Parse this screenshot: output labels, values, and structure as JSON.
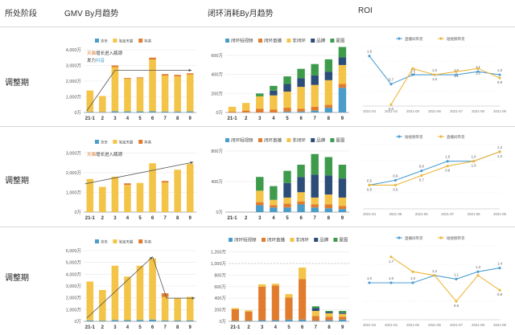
{
  "headers": {
    "stage": "所处阶段",
    "gmv": "GMV By月趋势",
    "closed": "闭环消耗By月趋势",
    "roi": "ROI"
  },
  "colors": {
    "jd": "#4a9cc9",
    "tmall": "#f3c447",
    "douyin": "#e17b2e",
    "brand": "#2c4d78",
    "planet": "#3f9b4c",
    "blue": "#4d9fd3",
    "yellow": "#edb73d",
    "arrow": "#555555"
  },
  "chart_data": [
    {
      "id": "r1-gmv",
      "type": "bar",
      "stacked": true,
      "stage": "调整期",
      "legend": [
        "京东",
        "淘宝天猫",
        "抖音"
      ],
      "annotation": {
        "pre": "天猫",
        "mid": "增长进入瓶颈",
        "line2pre": "发力",
        "line2hl": "抖音"
      },
      "categories": [
        "21-1",
        "2",
        "3",
        "4",
        "5",
        "6",
        "7",
        "8",
        "9"
      ],
      "yticks": [
        "0万",
        "1,000万",
        "2,000万",
        "3,000万",
        "4,000万"
      ],
      "ymax": 4000,
      "series": [
        {
          "name": "京东",
          "color": "#4a9cc9",
          "values": [
            40,
            30,
            80,
            70,
            70,
            80,
            60,
            60,
            70
          ]
        },
        {
          "name": "淘宝天猫",
          "color": "#f3c447",
          "values": [
            1360,
            1020,
            2820,
            2080,
            2120,
            3300,
            2300,
            2250,
            2350
          ]
        },
        {
          "name": "抖音",
          "color": "#e17b2e",
          "values": [
            0,
            0,
            100,
            50,
            50,
            120,
            90,
            90,
            80
          ]
        }
      ]
    },
    {
      "id": "r1-closed",
      "type": "bar",
      "stacked": true,
      "legend": [
        "闭环短视频",
        "闭环直播",
        "非闭环",
        "品牌",
        "星图"
      ],
      "categories": [
        "21-1",
        "2",
        "3",
        "4",
        "5",
        "6",
        "7",
        "8",
        "9"
      ],
      "yticks": [
        "0万",
        "200万",
        "400万",
        "600万"
      ],
      "ymax": 660,
      "series": [
        {
          "name": "闭环短视频",
          "color": "#4a9cc9",
          "values": [
            0,
            0,
            0,
            0,
            10,
            10,
            20,
            50,
            260
          ]
        },
        {
          "name": "闭环直播",
          "color": "#e17b2e",
          "values": [
            10,
            20,
            40,
            30,
            40,
            30,
            40,
            30,
            40
          ]
        },
        {
          "name": "非闭环",
          "color": "#f3c447",
          "values": [
            50,
            80,
            130,
            150,
            170,
            230,
            230,
            260,
            200
          ]
        },
        {
          "name": "品牌",
          "color": "#2c4d78",
          "values": [
            0,
            0,
            0,
            50,
            80,
            90,
            100,
            90,
            80
          ]
        },
        {
          "name": "星图",
          "color": "#3f9b4c",
          "values": [
            0,
            0,
            30,
            50,
            80,
            100,
            120,
            130,
            110
          ]
        }
      ]
    },
    {
      "id": "r1-roi",
      "type": "line",
      "legend": [
        "直播间带货",
        "短视频带货"
      ],
      "categories": [
        "2021-03",
        "2021-04",
        "2021-05",
        "2021-06",
        "2021-07",
        "2021-08",
        "2021-09"
      ],
      "ymax": 1.9,
      "series": [
        {
          "name": "直播间带货",
          "color": "#4d9fd3",
          "values": [
            1.6,
            0.7,
            1.0,
            1.0,
            1.0,
            1.1,
            1.0
          ],
          "labels": [
            "1.6",
            "0.7",
            "1.0",
            "1.0",
            "1.0",
            "1.1",
            "1.0"
          ]
        },
        {
          "name": "短视频带货",
          "color": "#edb73d",
          "values": [
            null,
            0.05,
            1.2,
            1.0,
            1.1,
            1.2,
            0.9
          ],
          "labels": [
            "",
            "0.0",
            "1.2",
            "1.0",
            "1.1",
            "1.2",
            "0.9"
          ]
        }
      ]
    },
    {
      "id": "r2-gmv",
      "type": "bar",
      "stacked": true,
      "stage": "调整期",
      "legend": [
        "京东",
        "淘宝天猫",
        "抖音"
      ],
      "annotation": {
        "pre": "天猫",
        "mid": "增长进入瓶颈",
        "line2pre": "",
        "line2hl": ""
      },
      "categories": [
        "21-1",
        "2",
        "3",
        "4",
        "5",
        "6",
        "7",
        "8",
        "9"
      ],
      "yticks": [
        "0万",
        "1,000万",
        "2,000万",
        "3,000万"
      ],
      "ymax": 3100,
      "series": [
        {
          "name": "京东",
          "color": "#4a9cc9",
          "values": [
            0,
            0,
            0,
            0,
            0,
            0,
            0,
            0,
            0
          ]
        },
        {
          "name": "淘宝天猫",
          "color": "#f3c447",
          "values": [
            1680,
            1280,
            1800,
            1380,
            1480,
            2480,
            1500,
            2150,
            2450
          ]
        },
        {
          "name": "抖音",
          "color": "#e17b2e",
          "values": [
            0,
            0,
            0,
            80,
            0,
            0,
            80,
            0,
            0
          ]
        }
      ]
    },
    {
      "id": "r2-closed",
      "type": "bar",
      "stacked": true,
      "legend": [
        "闭环短视频",
        "闭环直播",
        "非闭环",
        "品牌",
        "星图"
      ],
      "categories": [
        "21-1",
        "2",
        "3",
        "4",
        "5",
        "6",
        "7",
        "8",
        "9"
      ],
      "yticks": [
        "0万",
        "400万",
        "800万"
      ],
      "ymax": 820,
      "series": [
        {
          "name": "闭环短视频",
          "color": "#4a9cc9",
          "values": [
            0,
            0,
            90,
            60,
            60,
            100,
            60,
            50,
            40
          ]
        },
        {
          "name": "闭环直播",
          "color": "#e17b2e",
          "values": [
            0,
            0,
            40,
            30,
            50,
            40,
            40,
            50,
            40
          ]
        },
        {
          "name": "非闭环",
          "color": "#f3c447",
          "values": [
            0,
            0,
            150,
            70,
            80,
            120,
            90,
            130,
            110
          ]
        },
        {
          "name": "品牌",
          "color": "#2c4d78",
          "values": [
            0,
            0,
            0,
            0,
            190,
            200,
            300,
            250,
            250
          ]
        },
        {
          "name": "星图",
          "color": "#3f9b4c",
          "values": [
            0,
            0,
            180,
            180,
            160,
            160,
            270,
            240,
            180
          ]
        }
      ]
    },
    {
      "id": "r2-roi",
      "type": "line",
      "legend": [
        "短视频带货",
        "直播间带货"
      ],
      "categories": [
        "2021-04",
        "2021-05",
        "2021-06",
        "2021-07",
        "2021-08",
        "2021-09"
      ],
      "ymax": 1.35,
      "series": [
        {
          "name": "短视频带货",
          "color": "#4d9fd3",
          "values": [
            0.5,
            0.6,
            0.8,
            1.0,
            1.0,
            1.2
          ],
          "labels": [
            "0.5",
            "0.6",
            "0.8",
            "1.0",
            "1.0",
            "1.2"
          ]
        },
        {
          "name": "直播间带货",
          "color": "#edb73d",
          "values": [
            0.5,
            0.5,
            0.7,
            0.9,
            1.0,
            1.2
          ],
          "labels": [
            "0.5",
            "0.5",
            "0.7",
            "0.9",
            "1.0",
            "1.2"
          ]
        }
      ]
    },
    {
      "id": "r3-gmv",
      "type": "bar",
      "stacked": true,
      "stage": "调整期",
      "legend": [
        "京东",
        "淘宝天猫",
        "抖音"
      ],
      "categories": [
        "21-1",
        "2",
        "3",
        "4",
        "5",
        "6",
        "7",
        "8",
        "9"
      ],
      "yticks": [
        "0万",
        "1,000万",
        "2,000万",
        "3,000万",
        "4,000万",
        "5,000万",
        "6,000万"
      ],
      "ymax": 6000,
      "series": [
        {
          "name": "京东",
          "color": "#4a9cc9",
          "values": [
            80,
            60,
            120,
            100,
            120,
            150,
            80,
            80,
            80
          ]
        },
        {
          "name": "淘宝天猫",
          "color": "#f3c447",
          "values": [
            3300,
            2600,
            4600,
            3700,
            4600,
            5200,
            2000,
            1900,
            2000
          ]
        },
        {
          "name": "抖音",
          "color": "#e17b2e",
          "values": [
            0,
            0,
            0,
            0,
            0,
            0,
            300,
            0,
            0
          ]
        }
      ]
    },
    {
      "id": "r3-closed",
      "type": "bar",
      "stacked": true,
      "legend": [
        "闭环短视频",
        "闭环直播",
        "非闭环",
        "品牌",
        "星图"
      ],
      "categories": [
        "21-1",
        "2",
        "3",
        "4",
        "5",
        "6",
        "7",
        "8",
        "9"
      ],
      "yticks": [
        "0万",
        "200万",
        "400万",
        "600万",
        "800万",
        "1,000万",
        "1,200万"
      ],
      "ymax": 1250,
      "series": [
        {
          "name": "闭环短视频",
          "color": "#4a9cc9",
          "values": [
            10,
            10,
            20,
            20,
            30,
            30,
            10,
            20,
            30
          ]
        },
        {
          "name": "闭环直播",
          "color": "#e17b2e",
          "values": [
            200,
            160,
            580,
            600,
            380,
            700,
            80,
            60,
            50
          ]
        },
        {
          "name": "非闭环",
          "color": "#f3c447",
          "values": [
            20,
            20,
            40,
            30,
            60,
            200,
            90,
            60,
            50
          ]
        },
        {
          "name": "品牌",
          "color": "#2c4d78",
          "values": [
            0,
            0,
            0,
            0,
            0,
            0,
            50,
            20,
            20
          ]
        },
        {
          "name": "星图",
          "color": "#3f9b4c",
          "values": [
            0,
            0,
            0,
            0,
            0,
            0,
            30,
            20,
            30
          ]
        }
      ]
    },
    {
      "id": "r3-roi",
      "type": "line",
      "legend": [
        "直播间带货",
        "短视频带货"
      ],
      "categories": [
        "2021-03",
        "2021-04",
        "2021-05",
        "2021-06",
        "2021-07",
        "2021-08",
        "2021-09"
      ],
      "ymax": 2.0,
      "series": [
        {
          "name": "直播间带货",
          "color": "#4d9fd3",
          "values": [
            1.0,
            1.0,
            1.0,
            1.2,
            1.1,
            1.3,
            1.4
          ],
          "labels": [
            "1.0",
            "1.0",
            "1.0",
            "1.2",
            "1.1",
            "1.3",
            "1.4"
          ]
        },
        {
          "name": "短视频带货",
          "color": "#edb73d",
          "values": [
            null,
            1.7,
            1.3,
            1.2,
            0.5,
            1.2,
            0.8
          ],
          "labels": [
            "",
            "1.7",
            "",
            "",
            "0.5",
            "",
            "0.8"
          ]
        }
      ]
    }
  ]
}
